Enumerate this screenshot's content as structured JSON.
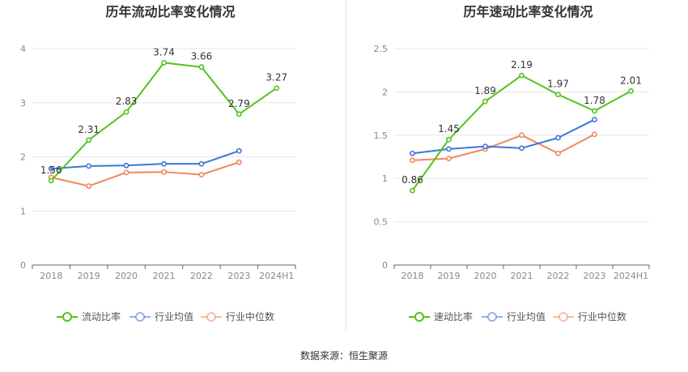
{
  "source_label": "数据来源：恒生聚源",
  "colors": {
    "main": "#52c41a",
    "avg": "#3a78d8",
    "median": "#f0875f",
    "grid": "#e6e6e6",
    "axis": "#888888"
  },
  "chart_data": [
    {
      "type": "line",
      "title": "历年流动比率变化情况",
      "categories": [
        "2018",
        "2019",
        "2020",
        "2021",
        "2022",
        "2023",
        "2024H1"
      ],
      "ylim": [
        0,
        4
      ],
      "yticks": [
        0,
        1,
        2,
        3,
        4
      ],
      "grid": true,
      "legend_position": "bottom",
      "series": [
        {
          "name": "流动比率",
          "key": "main",
          "values": [
            1.56,
            2.31,
            2.83,
            3.74,
            3.66,
            2.79,
            3.27
          ],
          "labels": [
            "1.56",
            "2.31",
            "2.83",
            "3.74",
            "3.66",
            "2.79",
            "3.27"
          ]
        },
        {
          "name": "行业均值",
          "key": "avg",
          "values": [
            1.78,
            1.83,
            1.84,
            1.87,
            1.87,
            2.11,
            null
          ]
        },
        {
          "name": "行业中位数",
          "key": "median",
          "values": [
            1.62,
            1.46,
            1.71,
            1.72,
            1.67,
            1.9,
            null
          ]
        }
      ]
    },
    {
      "type": "line",
      "title": "历年速动比率变化情况",
      "categories": [
        "2018",
        "2019",
        "2020",
        "2021",
        "2022",
        "2023",
        "2024H1"
      ],
      "ylim": [
        0,
        2.5
      ],
      "yticks": [
        0,
        0.5,
        1,
        1.5,
        2,
        2.5
      ],
      "grid": true,
      "legend_position": "bottom",
      "series": [
        {
          "name": "速动比率",
          "key": "main",
          "values": [
            0.86,
            1.45,
            1.89,
            2.19,
            1.97,
            1.78,
            2.01
          ],
          "labels": [
            "0.86",
            "1.45",
            "1.89",
            "2.19",
            "1.97",
            "1.78",
            "2.01"
          ]
        },
        {
          "name": "行业均值",
          "key": "avg",
          "values": [
            1.29,
            1.34,
            1.37,
            1.35,
            1.47,
            1.68,
            null
          ]
        },
        {
          "name": "行业中位数",
          "key": "median",
          "values": [
            1.21,
            1.23,
            1.34,
            1.5,
            1.29,
            1.51,
            null
          ]
        }
      ]
    }
  ]
}
